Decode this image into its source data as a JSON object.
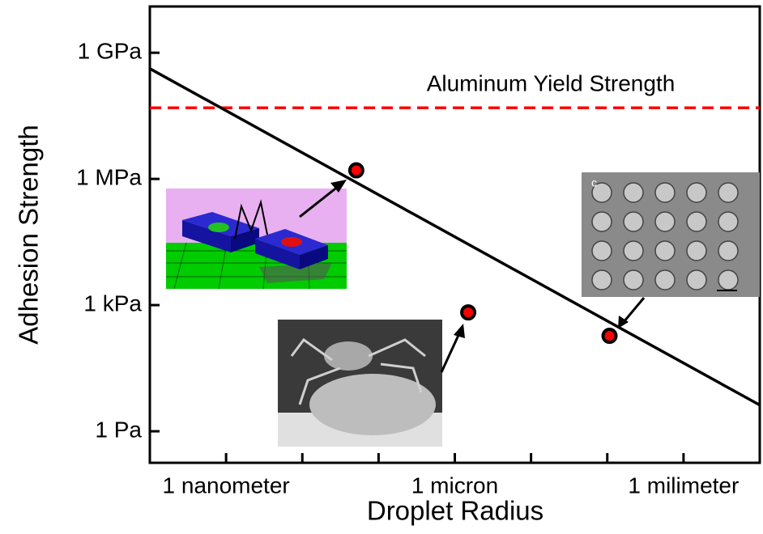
{
  "chart_data": {
    "type": "scatter",
    "xlabel": "Droplet Radius",
    "ylabel": "Adhesion Strength",
    "xscale": "log",
    "yscale": "log",
    "xlim": [
      1e-10,
      0.01
    ],
    "ylim": [
      0.178,
      12600000000.0
    ],
    "xticks": [
      {
        "value": 1e-09,
        "label": "1 nanometer"
      },
      {
        "value": 1e-08,
        "label": null
      },
      {
        "value": 1e-07,
        "label": null
      },
      {
        "value": 1e-06,
        "label": "1 micron"
      },
      {
        "value": 1e-05,
        "label": null
      },
      {
        "value": 0.0001,
        "label": null
      },
      {
        "value": 0.001,
        "label": "1 milimeter"
      }
    ],
    "yticks": [
      {
        "value": 1,
        "label": "1 Pa"
      },
      {
        "value": 1000,
        "label": "1 kPa"
      },
      {
        "value": 1000000,
        "label": "1 MPa"
      },
      {
        "value": 1000000000,
        "label": "1 GPa"
      }
    ],
    "fit_line": {
      "x": [
        1e-10,
        0.01
      ],
      "values": [
        420000000,
        4.2
      ],
      "color": "#000000"
    },
    "points": {
      "x": [
        5.1e-08,
        1.5e-06,
        0.000107
      ],
      "values": [
        1600000,
        670,
        186
      ],
      "color": "#ff0000"
    },
    "reference_line": {
      "value": 49000000,
      "label": "Aluminum Yield Strength",
      "color": "#ff0000"
    }
  }
}
